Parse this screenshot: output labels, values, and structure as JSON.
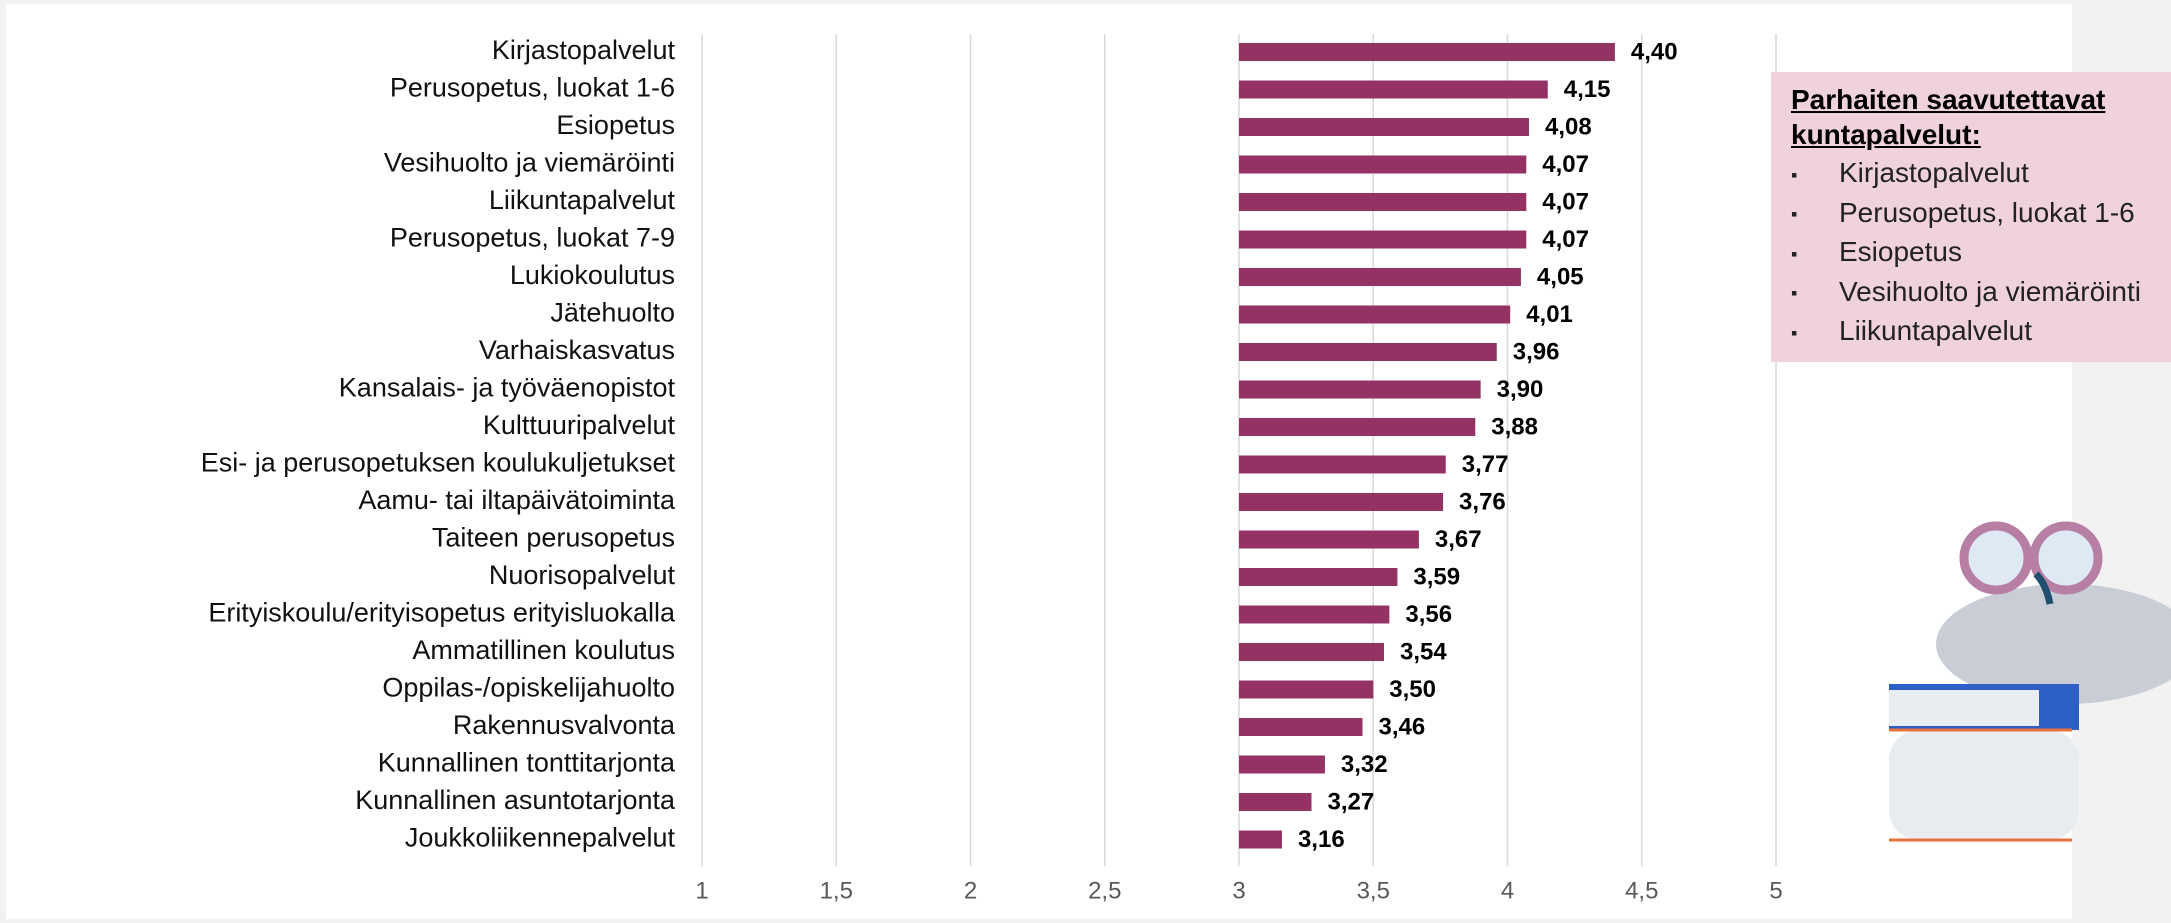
{
  "chart_data": {
    "type": "hbar",
    "categories": [
      "Kirjastopalvelut",
      "Perusopetus, luokat 1-6",
      "Esiopetus",
      "Vesihuolto ja viemäröinti",
      "Liikuntapalvelut",
      "Perusopetus, luokat 7-9",
      "Lukiokoulutus",
      "Jätehuolto",
      "Varhaiskasvatus",
      "Kansalais- ja työväenopistot",
      "Kulttuuripalvelut",
      "Esi- ja perusopetuksen koulukuljetukset",
      "Aamu- tai iltapäivätoiminta",
      "Taiteen perusopetus",
      "Nuorisopalvelut",
      "Erityiskoulu/erityisopetus erityisluokalla",
      "Ammatillinen koulutus",
      "Oppilas-/opiskelijahuolto",
      "Rakennusvalvonta",
      "Kunnallinen tonttitarjonta",
      "Kunnallinen asuntotarjonta",
      "Joukkoliikennepalvelut"
    ],
    "values": [
      4.4,
      4.15,
      4.08,
      4.07,
      4.07,
      4.07,
      4.05,
      4.01,
      3.96,
      3.9,
      3.88,
      3.77,
      3.76,
      3.67,
      3.59,
      3.56,
      3.54,
      3.5,
      3.46,
      3.32,
      3.27,
      3.16
    ],
    "value_labels": [
      "4,40",
      "4,15",
      "4,08",
      "4,07",
      "4,07",
      "4,07",
      "4,05",
      "4,01",
      "3,96",
      "3,90",
      "3,88",
      "3,77",
      "3,76",
      "3,67",
      "3,59",
      "3,56",
      "3,54",
      "3,50",
      "3,46",
      "3,32",
      "3,27",
      "3,16"
    ],
    "color": "#943264",
    "bar_base": 3,
    "xlim": [
      1,
      5
    ],
    "xticks": [
      1,
      {
        "value": 1.5,
        "label": "1,5"
      },
      2,
      {
        "value": 2.5,
        "label": "2,5"
      },
      3,
      {
        "value": 3.5,
        "label": "3,5"
      },
      4,
      {
        "value": 4.5,
        "label": "4,5"
      },
      5
    ],
    "grid": true
  },
  "callout": {
    "title": "Parhaiten saavutettavat kuntapalvelut:",
    "items": [
      "Kirjastopalvelut",
      "Perusopetus, luokat 1-6",
      "Esiopetus",
      "Vesihuolto ja viemäröinti",
      "Liikuntapalvelut"
    ]
  }
}
